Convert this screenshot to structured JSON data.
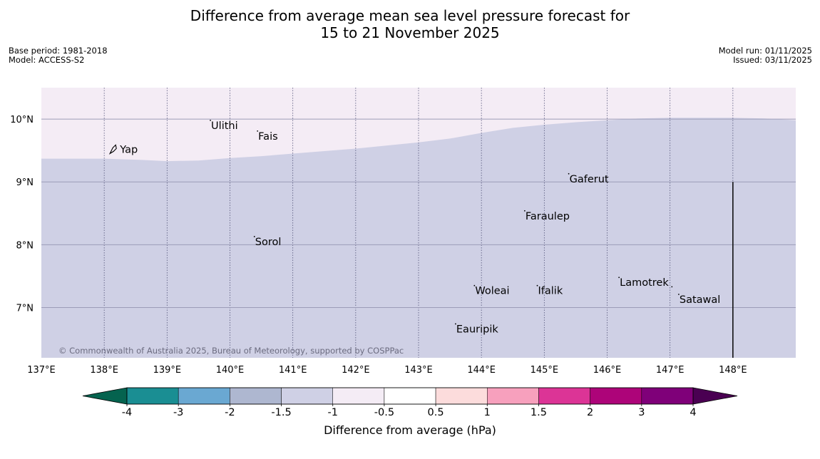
{
  "header": {
    "title_line1": "Difference from average mean sea level pressure forecast for",
    "title_line2": "15 to 21 November 2025",
    "base_period": "Base period: 1981-2018",
    "model": "Model: ACCESS-S2",
    "model_run": "Model run: 01/11/2025",
    "issued": "Issued: 03/11/2025"
  },
  "map": {
    "lon_range": [
      137,
      149
    ],
    "lat_range": [
      6.2,
      10.5
    ],
    "lon_ticks": [
      137,
      138,
      139,
      140,
      141,
      142,
      143,
      144,
      145,
      146,
      147,
      148
    ],
    "lon_tick_labels": [
      "137°E",
      "138°E",
      "139°E",
      "140°E",
      "141°E",
      "142°E",
      "143°E",
      "144°E",
      "145°E",
      "146°E",
      "147°E",
      "148°E"
    ],
    "lat_ticks": [
      7,
      8,
      9,
      10
    ],
    "lat_tick_labels": [
      "7°N",
      "8°N",
      "9°N",
      "10°N"
    ],
    "fill_colors": {
      "above": "#f4ecf5",
      "below": "#cfd0e5"
    },
    "boundary_lat": [
      [
        137,
        9.37
      ],
      [
        138,
        9.37
      ],
      [
        138.6,
        9.35
      ],
      [
        139,
        9.33
      ],
      [
        139.5,
        9.34
      ],
      [
        140,
        9.38
      ],
      [
        140.5,
        9.41
      ],
      [
        141,
        9.45
      ],
      [
        141.5,
        9.49
      ],
      [
        142,
        9.53
      ],
      [
        142.5,
        9.58
      ],
      [
        143,
        9.63
      ],
      [
        143.5,
        9.69
      ],
      [
        144,
        9.78
      ],
      [
        144.5,
        9.86
      ],
      [
        145,
        9.91
      ],
      [
        145.5,
        9.95
      ],
      [
        146,
        9.98
      ],
      [
        146.5,
        10.01
      ],
      [
        147,
        10.02
      ],
      [
        147.5,
        10.02
      ],
      [
        148,
        10.02
      ],
      [
        148.5,
        10.01
      ],
      [
        149,
        9.98
      ]
    ],
    "vertical_line": {
      "lon": 148,
      "lat_from": 6.2,
      "lat_to": 9.0
    },
    "places": [
      {
        "name": "Yap",
        "lon": 138.25,
        "lat": 9.52
      },
      {
        "name": "Ulithi",
        "lon": 139.7,
        "lat": 9.9
      },
      {
        "name": "Fais",
        "lon": 140.45,
        "lat": 9.73
      },
      {
        "name": "Sorol",
        "lon": 140.4,
        "lat": 8.05
      },
      {
        "name": "Gaferut",
        "lon": 145.4,
        "lat": 9.05
      },
      {
        "name": "Faraulep",
        "lon": 144.7,
        "lat": 8.46
      },
      {
        "name": "Woleai",
        "lon": 143.9,
        "lat": 7.27
      },
      {
        "name": "Ifalik",
        "lon": 144.9,
        "lat": 7.27
      },
      {
        "name": "Lamotrek",
        "lon": 146.2,
        "lat": 7.4
      },
      {
        "name": "Satawal",
        "lon": 147.15,
        "lat": 7.13
      },
      {
        "name": "Eauripik",
        "lon": 143.6,
        "lat": 6.66
      }
    ],
    "copyright": "© Commonwealth of Australia 2025, Bureau of Meteorology, supported by COSPPac"
  },
  "colorbar": {
    "title": "Difference from average (hPa)",
    "labels": [
      "-4",
      "-3",
      "-2",
      "-1.5",
      "-1",
      "-0.5",
      "0.5",
      "1",
      "1.5",
      "2",
      "3",
      "4"
    ],
    "low_extend_color": "#05634f",
    "high_extend_color": "#4a0052",
    "bins": [
      "#1a8e93",
      "#6aa8d2",
      "#aeb7d0",
      "#cfd0e5",
      "#f4ecf5",
      "#ffffff",
      "#fcdcdc",
      "#f7a0bd",
      "#dc3496",
      "#ad0479",
      "#7f0079"
    ]
  }
}
